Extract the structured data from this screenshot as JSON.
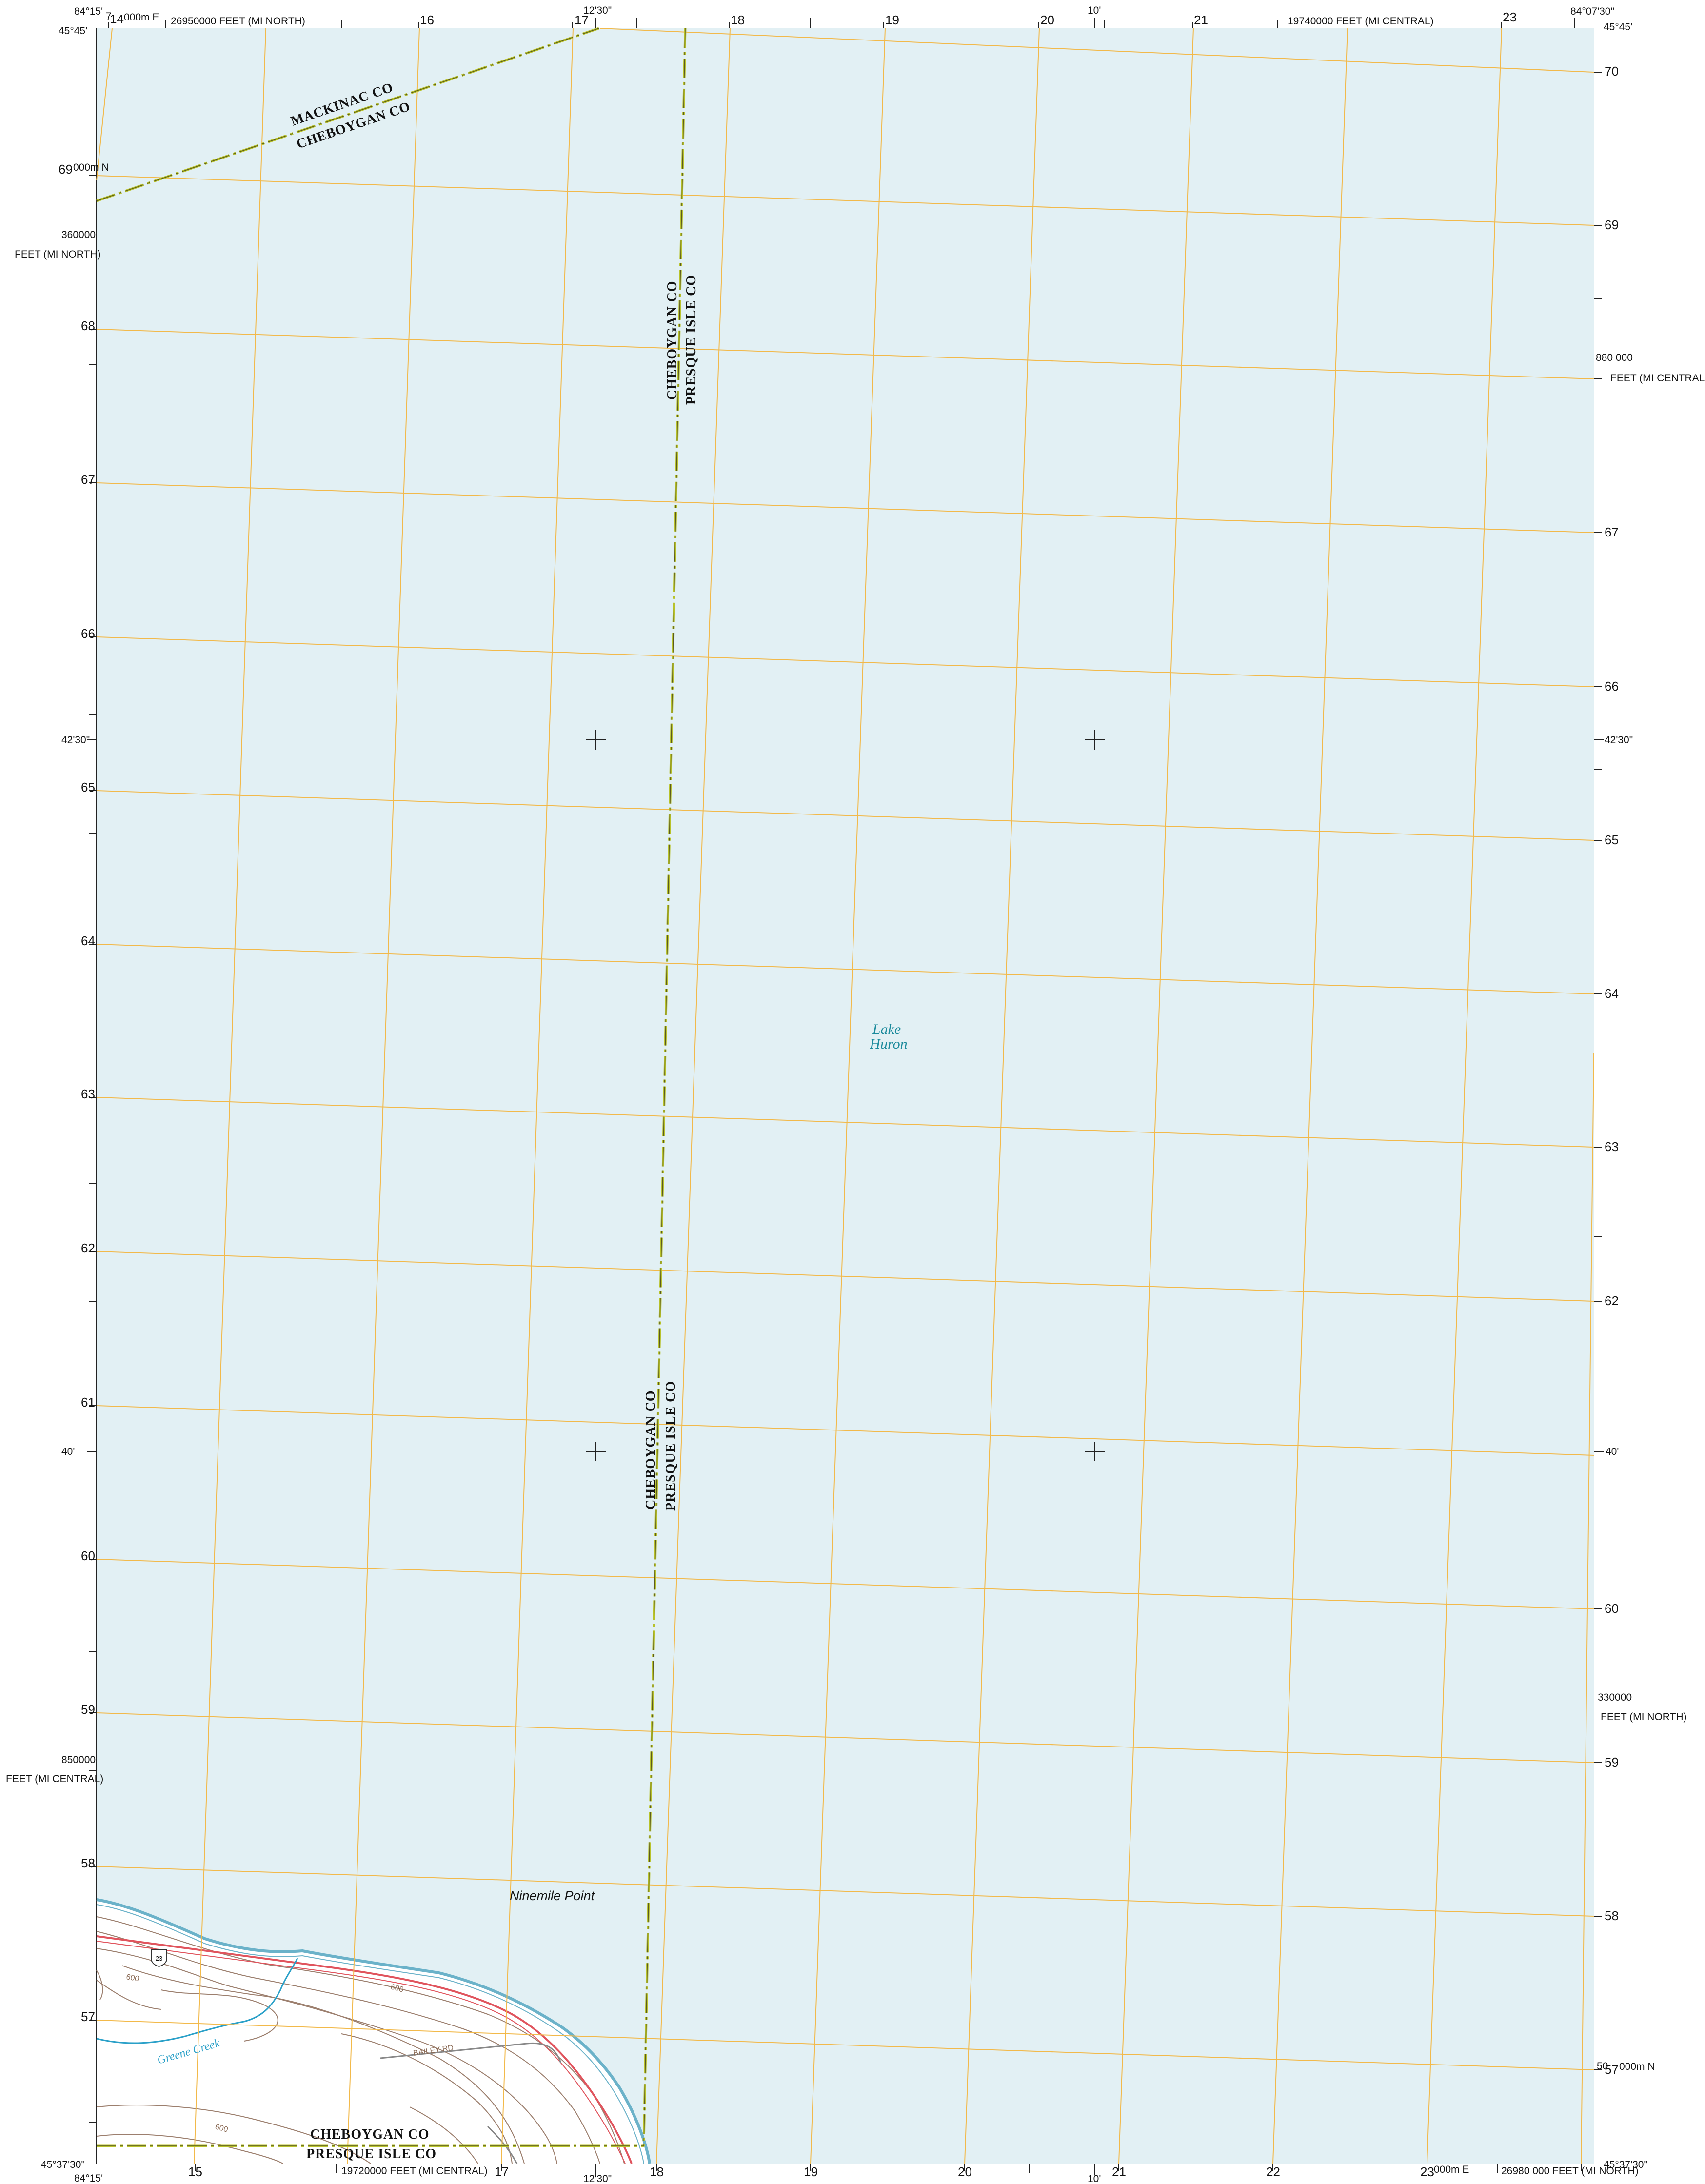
{
  "map": {
    "water_name": [
      "Lake",
      "Huron"
    ],
    "place_name": "Ninemile Point",
    "creek_name": "Greene Creek",
    "road_label": "BAILEY RD",
    "route_shield": "23",
    "contour_labels": [
      "600",
      "600",
      "600"
    ],
    "county_labels": {
      "mackinac": "MACKINAC CO",
      "cheboygan": "CHEBOYGAN CO",
      "presque_isle": "PRESQUE ISLE CO"
    },
    "corners": {
      "top_left_lon": "84°15'",
      "top_left_lat": "45°45'",
      "top_right_lon": "84°07'30\"",
      "top_right_lat": "45°45'",
      "bottom_left_lat": "45°37'30\"",
      "bottom_left_lon": "84°15'",
      "bottom_right_lat": "45°37'30\""
    },
    "top_labels": {
      "e14": "14",
      "e14_suffix": "000m E",
      "e14_prefix": "7",
      "feet_north": "26950000 FEET (MI NORTH)",
      "e16": "16",
      "e17": "17",
      "mid_lon": "12'30\"",
      "e18": "18",
      "e19": "19",
      "e20": "20",
      "ten": "10'",
      "e21": "21",
      "feet_central": "19740000 FEET (MI CENTRAL)",
      "e23": "23",
      "e_prefix": "7"
    },
    "bottom_labels": {
      "e15": "15",
      "feet_central": "19720000 FEET (MI CENTRAL)",
      "e17": "17",
      "mid_lon": "12'30\"",
      "e18": "18",
      "e19": "19",
      "e20": "20",
      "ten": "10'",
      "e21": "21",
      "e22": "22",
      "e23": "23",
      "e23_suffix": "000m E",
      "feet_north": "26980 000 FEET (MI NORTH)",
      "e_prefix": "7"
    },
    "left_labels": {
      "n69": "69",
      "n69_suffix": "000m N",
      "feet_north_value": "360000",
      "feet_north_unit": "FEET (MI NORTH)",
      "n68": "68",
      "n67": "67",
      "n66": "66",
      "lat_4230": "42'30\"",
      "n65": "65",
      "n64": "64",
      "n63": "63",
      "n62": "62",
      "n61": "61",
      "lat_40": "40'",
      "n60": "60",
      "n59": "59",
      "feet_central_value": "850000",
      "feet_central_unit": "FEET (MI CENTRAL)",
      "n58": "58",
      "n57": "57",
      "n_prefix": "50"
    },
    "right_labels": {
      "n70": "70",
      "n69": "69",
      "feet_central_value": "880 000",
      "feet_central_unit": "FEET (MI CENTRAL)",
      "n67": "67",
      "n66": "66",
      "lat_4230": "42'30\"",
      "n65": "65",
      "n64": "64",
      "n63": "63",
      "n62": "62",
      "lat_40": "40'",
      "n60": "60",
      "feet_north_value": "330000",
      "feet_north_unit": "FEET (MI NORTH)",
      "n59": "59",
      "n58": "58",
      "n57": "57",
      "n57_suffix": "000m N",
      "n_prefix": "50"
    },
    "colors": {
      "water": "#e2f0f4",
      "grid": "#f2b94a",
      "boundary": "#b8c22a",
      "road": "#e0545d",
      "contour": "#9c7f6e",
      "shoreline": "#6bb2c9",
      "creek": "#2aa0c8"
    }
  }
}
